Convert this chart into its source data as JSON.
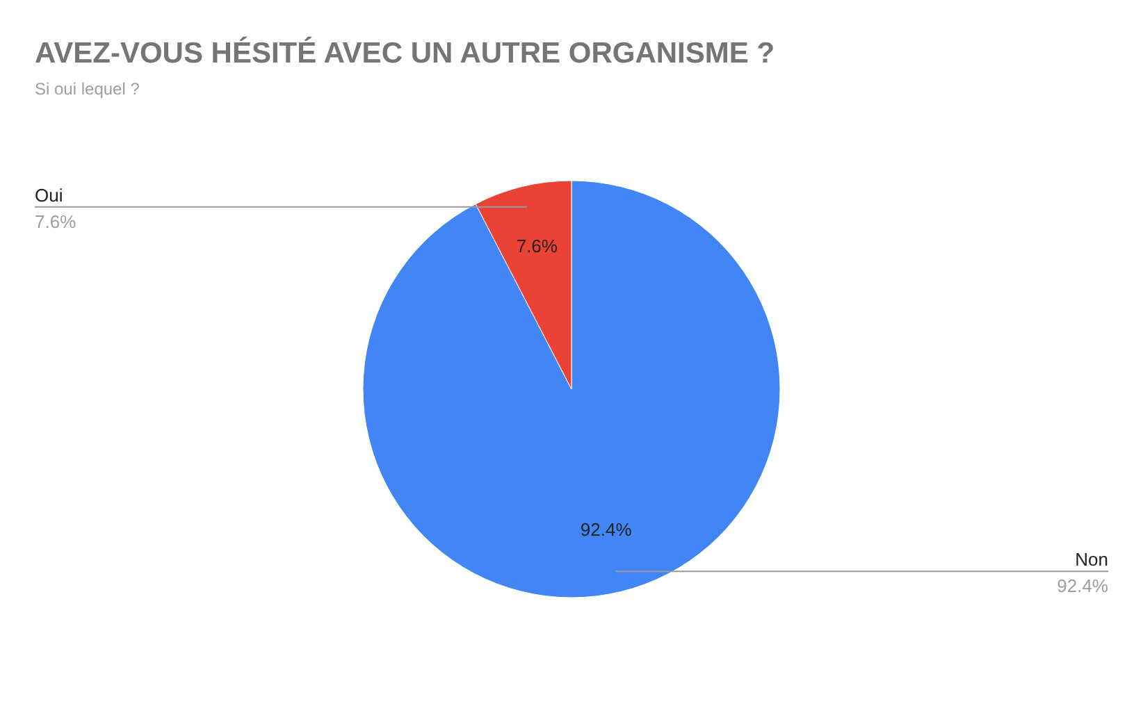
{
  "chart_data": {
    "type": "pie",
    "title": "AVEZ-VOUS HÉSITÉ AVEC UN AUTRE ORGANISME ?",
    "subtitle": "Si oui lequel ?",
    "categories": [
      "Non",
      "Oui"
    ],
    "values": [
      92.4,
      7.6
    ],
    "value_labels": [
      "92.4%",
      "7.6%"
    ],
    "colors": [
      "#4285f4",
      "#ea4335"
    ]
  }
}
